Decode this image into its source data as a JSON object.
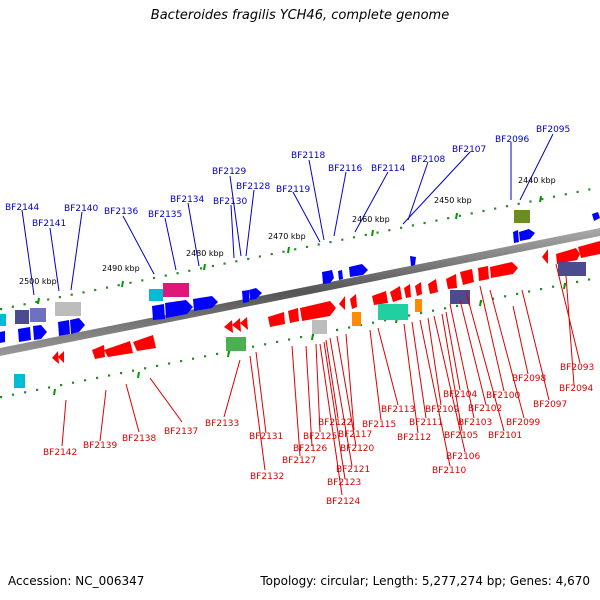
{
  "title": "Bacteroides fragilis YCH46, complete genome",
  "footer": {
    "accession": "Accession: NC_006347",
    "topology": "Topology: circular; Length: 5,277,274 bp; Genes: 4,670"
  },
  "scale_labels": [
    "2440 kbp",
    "2450 kbp",
    "2460 kbp",
    "2470 kbp",
    "2480 kbp",
    "2490 kbp",
    "2500 kbp"
  ],
  "top_genes": [
    "BF2095",
    "BF2096",
    "BF2107",
    "BF2108",
    "BF2114",
    "BF2116",
    "BF2118",
    "BF2119",
    "BF2128",
    "BF2129",
    "BF2130",
    "BF2134",
    "BF2135",
    "BF2136",
    "BF2140",
    "BF2141",
    "BF2144"
  ],
  "bottom_genes": [
    "BF2093",
    "BF2094",
    "BF2097",
    "BF2098",
    "BF2099",
    "BF2100",
    "BF2101",
    "BF2102",
    "BF2103",
    "BF2104",
    "BF2105",
    "BF2106",
    "BF2109",
    "BF2110",
    "BF2111",
    "BF2112",
    "BF2113",
    "BF2115",
    "BF2117",
    "BF2120",
    "BF2121",
    "BF2122",
    "BF2123",
    "BF2124",
    "BF2125",
    "BF2126",
    "BF2127",
    "BF2131",
    "BF2132",
    "BF2133",
    "BF2137",
    "BF2138",
    "BF2139",
    "BF2142"
  ],
  "colors": {
    "forward": "#0000ff",
    "reverse": "#ff0000",
    "backbone": "#777777",
    "tick": "#009900"
  }
}
